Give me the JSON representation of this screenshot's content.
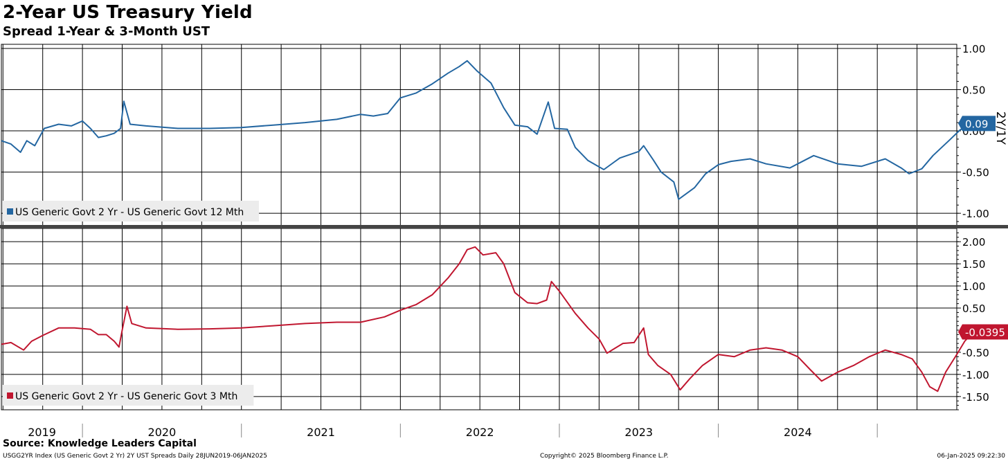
{
  "chart_data": [
    {
      "type": "line",
      "panel": "top",
      "title": "2-Year US Treasury Yield",
      "subtitle": "Spread 1-Year & 3-Month UST",
      "ylabel": "2Y/1Y",
      "ylim": [
        -1.15,
        1.05
      ],
      "yticks": [
        "1.00",
        "0.50",
        "0.00",
        "-0.50",
        "-1.00"
      ],
      "ytick_values": [
        1.0,
        0.5,
        0.0,
        -0.5,
        -1.0
      ],
      "color": "#2366a1",
      "legend": "US Generic Govt 2 Yr - US Generic Govt 12 Mth",
      "last_value_label": "0.09",
      "last_value": 0.09,
      "series": [
        {
          "values": [
            [
              2019.49,
              -0.12
            ],
            [
              2019.55,
              -0.16
            ],
            [
              2019.61,
              -0.26
            ],
            [
              2019.65,
              -0.12
            ],
            [
              2019.7,
              -0.18
            ],
            [
              2019.76,
              0.03
            ],
            [
              2019.85,
              0.08
            ],
            [
              2019.93,
              0.06
            ],
            [
              2020.0,
              0.12
            ],
            [
              2020.05,
              0.03
            ],
            [
              2020.1,
              -0.08
            ],
            [
              2020.15,
              -0.06
            ],
            [
              2020.2,
              -0.03
            ],
            [
              2020.24,
              0.03
            ],
            [
              2020.26,
              0.36
            ],
            [
              2020.3,
              0.08
            ],
            [
              2020.4,
              0.06
            ],
            [
              2020.6,
              0.03
            ],
            [
              2020.8,
              0.03
            ],
            [
              2021.0,
              0.04
            ],
            [
              2021.2,
              0.07
            ],
            [
              2021.4,
              0.1
            ],
            [
              2021.6,
              0.14
            ],
            [
              2021.75,
              0.2
            ],
            [
              2021.83,
              0.18
            ],
            [
              2021.92,
              0.21
            ],
            [
              2022.0,
              0.4
            ],
            [
              2022.1,
              0.46
            ],
            [
              2022.2,
              0.57
            ],
            [
              2022.3,
              0.7
            ],
            [
              2022.37,
              0.78
            ],
            [
              2022.42,
              0.85
            ],
            [
              2022.48,
              0.73
            ],
            [
              2022.57,
              0.58
            ],
            [
              2022.65,
              0.28
            ],
            [
              2022.72,
              0.07
            ],
            [
              2022.8,
              0.05
            ],
            [
              2022.86,
              -0.04
            ],
            [
              2022.93,
              0.35
            ],
            [
              2022.97,
              0.03
            ],
            [
              2023.05,
              0.02
            ],
            [
              2023.1,
              -0.2
            ],
            [
              2023.18,
              -0.36
            ],
            [
              2023.28,
              -0.47
            ],
            [
              2023.38,
              -0.33
            ],
            [
              2023.5,
              -0.25
            ],
            [
              2023.53,
              -0.18
            ],
            [
              2023.59,
              -0.35
            ],
            [
              2023.64,
              -0.5
            ],
            [
              2023.72,
              -0.62
            ],
            [
              2023.75,
              -0.83
            ],
            [
              2023.85,
              -0.69
            ],
            [
              2023.92,
              -0.52
            ],
            [
              2024.0,
              -0.41
            ],
            [
              2024.08,
              -0.37
            ],
            [
              2024.2,
              -0.34
            ],
            [
              2024.3,
              -0.4
            ],
            [
              2024.45,
              -0.45
            ],
            [
              2024.55,
              -0.35
            ],
            [
              2024.6,
              -0.3
            ],
            [
              2024.75,
              -0.4
            ],
            [
              2024.9,
              -0.43
            ],
            [
              2025.05,
              -0.34
            ],
            [
              2025.15,
              -0.45
            ],
            [
              2025.2,
              -0.52
            ],
            [
              2025.28,
              -0.46
            ],
            [
              2025.35,
              -0.3
            ],
            [
              2025.45,
              -0.12
            ],
            [
              2025.52,
              0.01
            ],
            [
              2025.57,
              0.07
            ],
            [
              2025.62,
              0.09
            ]
          ]
        }
      ]
    },
    {
      "type": "line",
      "panel": "bottom",
      "ylim": [
        -1.8,
        2.3
      ],
      "yticks": [
        "2.00",
        "1.50",
        "1.00",
        "0.50",
        "-0.50",
        "-1.00",
        "-1.50"
      ],
      "ytick_values": [
        2.0,
        1.5,
        1.0,
        0.5,
        -0.5,
        -1.0,
        -1.5
      ],
      "color": "#c0162f",
      "legend": "US Generic Govt 2 Yr - US Generic Govt 3 Mth",
      "last_value_label": "-0.0395",
      "last_value": -0.0395,
      "series": [
        {
          "values": [
            [
              2019.49,
              -0.32
            ],
            [
              2019.55,
              -0.28
            ],
            [
              2019.63,
              -0.45
            ],
            [
              2019.68,
              -0.25
            ],
            [
              2019.75,
              -0.12
            ],
            [
              2019.85,
              0.05
            ],
            [
              2019.95,
              0.05
            ],
            [
              2020.05,
              0.02
            ],
            [
              2020.1,
              -0.1
            ],
            [
              2020.15,
              -0.1
            ],
            [
              2020.2,
              -0.25
            ],
            [
              2020.23,
              -0.38
            ],
            [
              2020.25,
              0.0
            ],
            [
              2020.28,
              0.54
            ],
            [
              2020.31,
              0.15
            ],
            [
              2020.4,
              0.05
            ],
            [
              2020.6,
              0.02
            ],
            [
              2020.8,
              0.03
            ],
            [
              2021.0,
              0.05
            ],
            [
              2021.2,
              0.1
            ],
            [
              2021.4,
              0.15
            ],
            [
              2021.6,
              0.18
            ],
            [
              2021.75,
              0.18
            ],
            [
              2021.9,
              0.3
            ],
            [
              2022.0,
              0.45
            ],
            [
              2022.1,
              0.58
            ],
            [
              2022.2,
              0.8
            ],
            [
              2022.3,
              1.18
            ],
            [
              2022.37,
              1.5
            ],
            [
              2022.42,
              1.82
            ],
            [
              2022.47,
              1.88
            ],
            [
              2022.52,
              1.7
            ],
            [
              2022.6,
              1.75
            ],
            [
              2022.65,
              1.5
            ],
            [
              2022.72,
              0.85
            ],
            [
              2022.8,
              0.62
            ],
            [
              2022.86,
              0.6
            ],
            [
              2022.92,
              0.68
            ],
            [
              2022.95,
              1.1
            ],
            [
              2023.0,
              0.88
            ],
            [
              2023.1,
              0.38
            ],
            [
              2023.18,
              0.05
            ],
            [
              2023.25,
              -0.2
            ],
            [
              2023.3,
              -0.52
            ],
            [
              2023.4,
              -0.3
            ],
            [
              2023.47,
              -0.28
            ],
            [
              2023.53,
              0.05
            ],
            [
              2023.56,
              -0.55
            ],
            [
              2023.62,
              -0.8
            ],
            [
              2023.7,
              -1.0
            ],
            [
              2023.76,
              -1.35
            ],
            [
              2023.82,
              -1.1
            ],
            [
              2023.9,
              -0.8
            ],
            [
              2024.0,
              -0.55
            ],
            [
              2024.1,
              -0.6
            ],
            [
              2024.2,
              -0.45
            ],
            [
              2024.3,
              -0.4
            ],
            [
              2024.4,
              -0.45
            ],
            [
              2024.5,
              -0.6
            ],
            [
              2024.58,
              -0.9
            ],
            [
              2024.65,
              -1.15
            ],
            [
              2024.75,
              -0.95
            ],
            [
              2024.85,
              -0.8
            ],
            [
              2024.95,
              -0.6
            ],
            [
              2025.05,
              -0.45
            ],
            [
              2025.15,
              -0.55
            ],
            [
              2025.22,
              -0.65
            ],
            [
              2025.28,
              -0.95
            ],
            [
              2025.33,
              -1.28
            ],
            [
              2025.38,
              -1.38
            ],
            [
              2025.43,
              -0.95
            ],
            [
              2025.5,
              -0.55
            ],
            [
              2025.55,
              -0.25
            ],
            [
              2025.6,
              -0.05
            ],
            [
              2025.62,
              -0.04
            ]
          ]
        }
      ]
    }
  ],
  "xaxis": {
    "xlim": [
      2019.49,
      2025.5
    ],
    "year_labels": [
      "2019",
      "2020",
      "2021",
      "2022",
      "2023",
      "2024"
    ]
  },
  "footer": {
    "source": "Source: Knowledge Leaders Capital",
    "left": "USGG2YR Index (US Generic Govt 2 Yr) 2Y UST Spreads  Daily 28JUN2019-06JAN2025",
    "middle": "Copyright© 2025 Bloomberg Finance L.P.",
    "right": "06-Jan-2025 09:22:30"
  }
}
